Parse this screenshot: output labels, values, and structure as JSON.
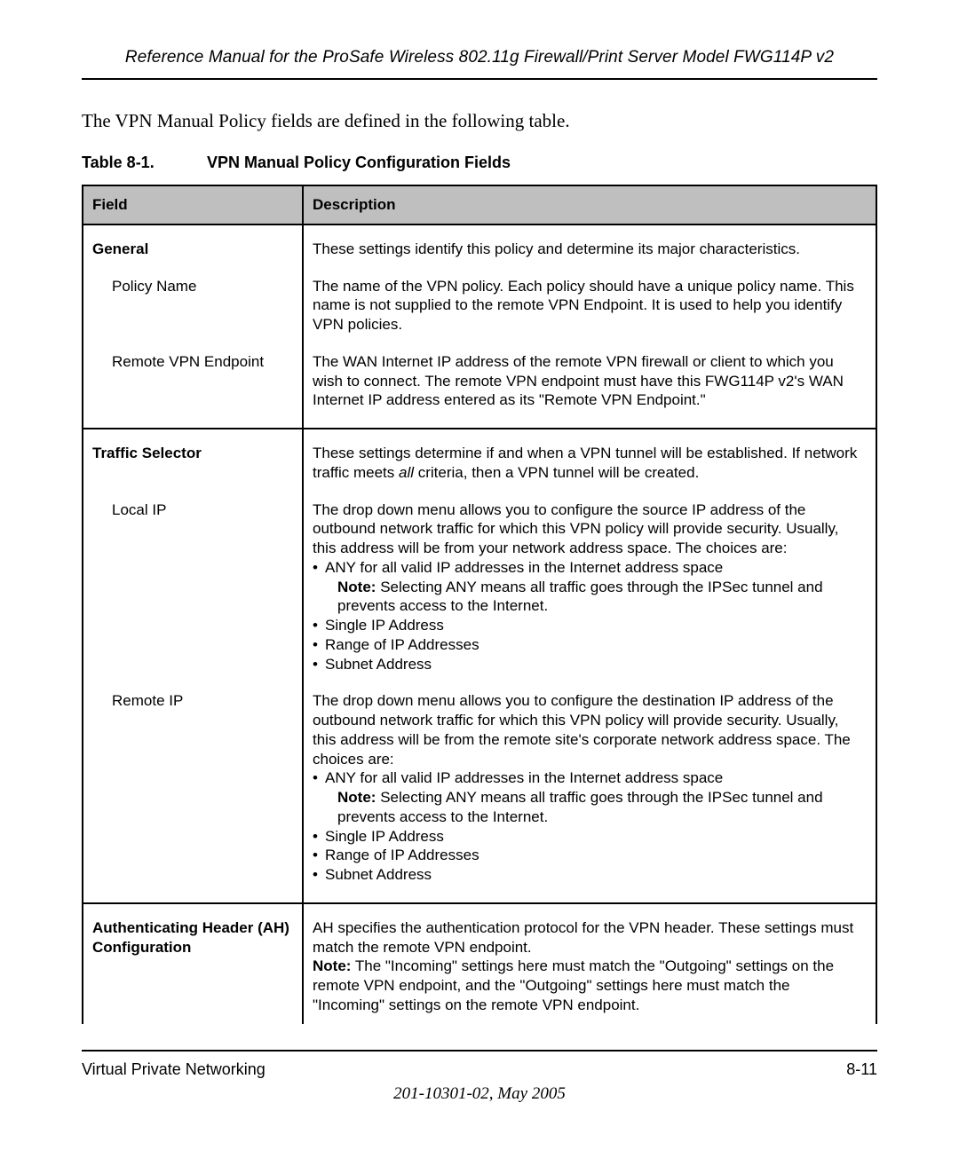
{
  "header": {
    "title": "Reference Manual for the ProSafe Wireless 802.11g  Firewall/Print Server Model FWG114P v2"
  },
  "intro": "The VPN Manual Policy fields are defined in the following table.",
  "table": {
    "caption_number": "Table 8-1.",
    "caption_title": "VPN Manual Policy Configuration Fields",
    "columns": {
      "field": "Field",
      "description": "Description"
    },
    "sections": [
      {
        "heading": "General",
        "heading_desc": "These settings identify this policy and determine its major characteristics.",
        "rows": [
          {
            "field": "Policy Name",
            "desc": "The name of the VPN policy. Each policy should have a unique policy name. This name is not supplied to the remote VPN Endpoint. It is used to help you identify VPN policies."
          },
          {
            "field": "Remote VPN Endpoint",
            "desc": "The WAN Internet IP address of the remote VPN firewall or client to which you wish to connect. The remote VPN endpoint must have this FWG114P v2's WAN Internet IP address entered as its \"Remote VPN Endpoint.\""
          }
        ]
      },
      {
        "heading": "Traffic Selector",
        "heading_desc_pre": "These settings determine if and when a VPN tunnel will be established. If network traffic meets ",
        "heading_desc_italic": "all",
        "heading_desc_post": " criteria, then a VPN tunnel will be created.",
        "rows": [
          {
            "field": "Local IP",
            "desc_intro": "The drop down menu allows you to configure the source IP address of the outbound network traffic for which this VPN policy will provide security. Usually, this address will be from your network address space. The choices are:",
            "bullets": [
              {
                "text": "ANY for all valid IP addresses in the Internet address space",
                "note": "Selecting ANY means all traffic goes through the IPSec tunnel and prevents access to the Internet."
              },
              {
                "text": "Single IP Address"
              },
              {
                "text": "Range of IP Addresses"
              },
              {
                "text": "Subnet Address"
              }
            ]
          },
          {
            "field": "Remote IP",
            "desc_intro": "The drop down menu allows you to configure the destination IP address of the outbound network traffic for which this VPN policy will provide security. Usually, this address will be from the remote site's corporate network address space. The choices are:",
            "bullets": [
              {
                "text": "ANY for all valid IP addresses in the Internet address space",
                "note": "Selecting ANY means all traffic goes through the IPSec tunnel and prevents access to the Internet."
              },
              {
                "text": "Single IP Address"
              },
              {
                "text": "Range of IP Addresses"
              },
              {
                "text": "Subnet Address"
              }
            ]
          }
        ]
      },
      {
        "heading": "Authenticating Header (AH) Configuration",
        "heading_desc_plain": "AH specifies the authentication protocol for the VPN header. These settings must match the remote VPN endpoint.",
        "heading_note": "The \"Incoming\" settings here must match the \"Outgoing\" settings on the remote VPN endpoint, and the \"Outgoing\" settings here must match the \"Incoming\" settings on the remote VPN endpoint.",
        "rows": []
      }
    ]
  },
  "labels": {
    "note": "Note:"
  },
  "footer": {
    "left": "Virtual Private Networking",
    "right": "8-11",
    "docid": "201-10301-02, May 2005"
  }
}
